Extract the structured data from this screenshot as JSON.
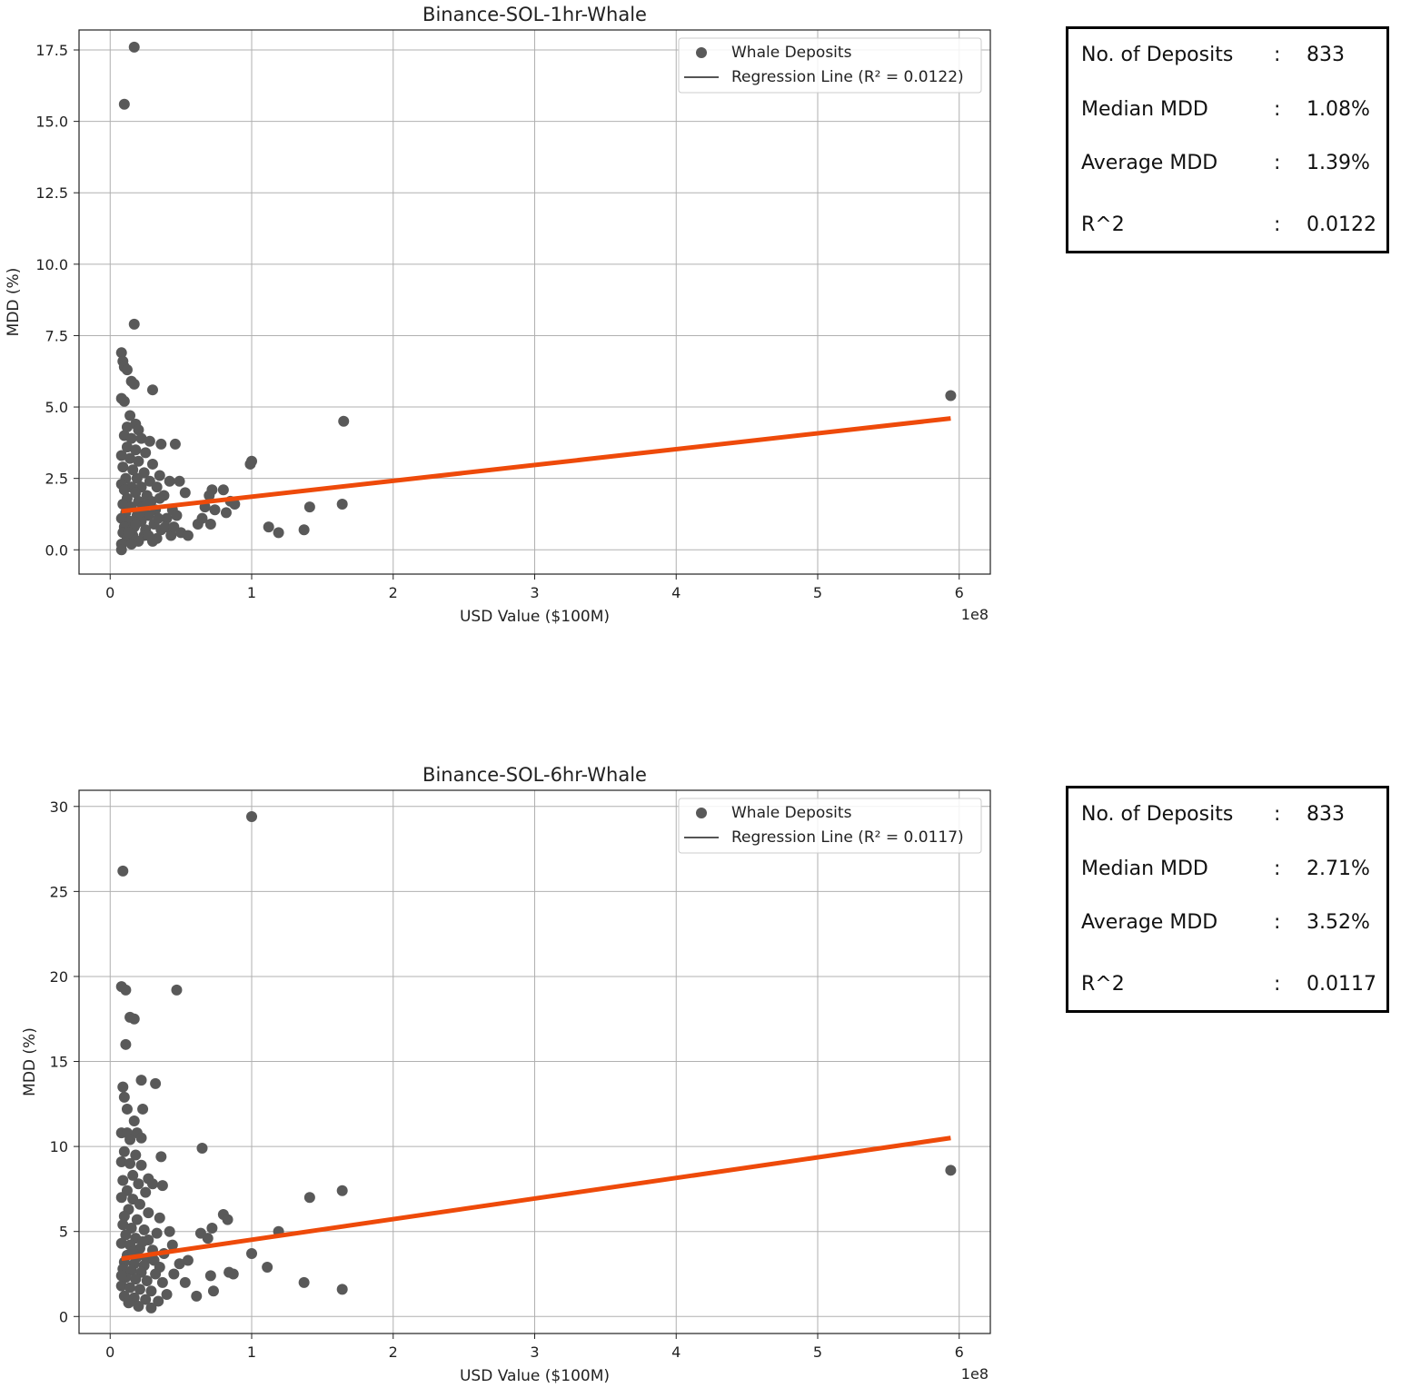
{
  "chart_data": [
    {
      "type": "scatter",
      "title": "Binance-SOL-1hr-Whale",
      "xlabel": "USD Value ($100M)",
      "ylabel": "MDD (%)",
      "x_offset_label": "1e8",
      "xlim": [
        -0.22,
        6.22
      ],
      "ylim": [
        -0.85,
        18.2
      ],
      "xticks": [
        0,
        1,
        2,
        3,
        4,
        5,
        6
      ],
      "xtick_labels": [
        "0",
        "1",
        "2",
        "3",
        "4",
        "5",
        "6"
      ],
      "yticks": [
        0,
        2.5,
        5,
        7.5,
        10,
        12.5,
        15,
        17.5
      ],
      "ytick_labels": [
        "0.0",
        "2.5",
        "5.0",
        "7.5",
        "10.0",
        "12.5",
        "15.0",
        "17.5"
      ],
      "grid": true,
      "legend": {
        "position": "top-right",
        "entries": [
          "Whale Deposits",
          "Regression Line (R² = 0.0122)"
        ]
      },
      "series": [
        {
          "name": "Whale Deposits",
          "kind": "scatter",
          "color": "#595959",
          "points": [
            [
              0.1,
              15.6
            ],
            [
              0.17,
              17.6
            ],
            [
              0.17,
              7.9
            ],
            [
              0.08,
              6.9
            ],
            [
              0.09,
              6.6
            ],
            [
              0.1,
              6.4
            ],
            [
              0.12,
              6.3
            ],
            [
              0.15,
              5.9
            ],
            [
              0.17,
              5.8
            ],
            [
              0.3,
              5.6
            ],
            [
              0.08,
              5.3
            ],
            [
              0.1,
              5.2
            ],
            [
              0.14,
              4.7
            ],
            [
              0.18,
              4.4
            ],
            [
              0.12,
              4.3
            ],
            [
              0.2,
              4.2
            ],
            [
              0.1,
              4.0
            ],
            [
              0.15,
              3.9
            ],
            [
              0.22,
              3.9
            ],
            [
              0.28,
              3.8
            ],
            [
              0.36,
              3.7
            ],
            [
              0.46,
              3.7
            ],
            [
              0.12,
              3.6
            ],
            [
              0.18,
              3.5
            ],
            [
              0.25,
              3.4
            ],
            [
              0.08,
              3.3
            ],
            [
              0.14,
              3.2
            ],
            [
              0.2,
              3.1
            ],
            [
              0.3,
              3.0
            ],
            [
              0.09,
              2.9
            ],
            [
              0.16,
              2.8
            ],
            [
              0.24,
              2.7
            ],
            [
              0.35,
              2.6
            ],
            [
              0.11,
              2.5
            ],
            [
              0.19,
              2.5
            ],
            [
              0.28,
              2.4
            ],
            [
              0.42,
              2.4
            ],
            [
              0.49,
              2.4
            ],
            [
              0.08,
              2.3
            ],
            [
              0.15,
              2.2
            ],
            [
              0.22,
              2.2
            ],
            [
              0.33,
              2.2
            ],
            [
              0.53,
              2.0
            ],
            [
              0.1,
              2.1
            ],
            [
              0.18,
              2.0
            ],
            [
              0.26,
              1.9
            ],
            [
              0.38,
              1.9
            ],
            [
              0.12,
              1.8
            ],
            [
              0.2,
              1.7
            ],
            [
              0.29,
              1.7
            ],
            [
              0.35,
              1.8
            ],
            [
              0.09,
              1.6
            ],
            [
              0.15,
              1.5
            ],
            [
              0.23,
              1.5
            ],
            [
              0.32,
              1.4
            ],
            [
              0.44,
              1.4
            ],
            [
              0.11,
              1.3
            ],
            [
              0.19,
              1.2
            ],
            [
              0.27,
              1.2
            ],
            [
              0.4,
              1.1
            ],
            [
              0.08,
              1.1
            ],
            [
              0.14,
              1.0
            ],
            [
              0.22,
              1.0
            ],
            [
              0.31,
              0.9
            ],
            [
              0.47,
              1.2
            ],
            [
              0.1,
              0.8
            ],
            [
              0.17,
              0.8
            ],
            [
              0.25,
              0.7
            ],
            [
              0.36,
              0.7
            ],
            [
              0.09,
              0.6
            ],
            [
              0.16,
              0.5
            ],
            [
              0.24,
              0.5
            ],
            [
              0.33,
              0.4
            ],
            [
              0.12,
              0.4
            ],
            [
              0.2,
              0.3
            ],
            [
              0.3,
              0.3
            ],
            [
              0.08,
              0.2
            ],
            [
              0.15,
              0.2
            ],
            [
              0.27,
              0.5
            ],
            [
              0.43,
              0.5
            ],
            [
              0.5,
              0.6
            ],
            [
              0.55,
              0.5
            ],
            [
              0.62,
              0.9
            ],
            [
              0.65,
              1.1
            ],
            [
              0.67,
              1.5
            ],
            [
              0.7,
              1.9
            ],
            [
              0.72,
              2.1
            ],
            [
              0.8,
              2.1
            ],
            [
              0.74,
              1.4
            ],
            [
              0.82,
              1.3
            ],
            [
              0.85,
              1.7
            ],
            [
              0.88,
              1.6
            ],
            [
              0.71,
              0.9
            ],
            [
              0.99,
              3.0
            ],
            [
              1.0,
              3.1
            ],
            [
              1.12,
              0.8
            ],
            [
              1.19,
              0.6
            ],
            [
              1.37,
              0.7
            ],
            [
              1.41,
              1.5
            ],
            [
              1.64,
              1.6
            ],
            [
              1.65,
              4.5
            ],
            [
              5.94,
              5.4
            ],
            [
              0.08,
              0.0
            ],
            [
              0.13,
              0.6
            ],
            [
              0.18,
              0.9
            ],
            [
              0.21,
              1.3
            ],
            [
              0.26,
              1.6
            ],
            [
              0.34,
              1.1
            ],
            [
              0.39,
              0.8
            ],
            [
              0.45,
              0.8
            ]
          ]
        },
        {
          "name": "Regression Line (R² = 0.0122)",
          "kind": "line",
          "color": "#ee4a0a",
          "x": [
            0.08,
            5.94
          ],
          "y": [
            1.35,
            4.6
          ]
        }
      ]
    },
    {
      "type": "scatter",
      "title": "Binance-SOL-6hr-Whale",
      "xlabel": "USD Value ($100M)",
      "ylabel": "MDD (%)",
      "x_offset_label": "1e8",
      "xlim": [
        -0.22,
        6.22
      ],
      "ylim": [
        -1.0,
        30.95
      ],
      "xticks": [
        0,
        1,
        2,
        3,
        4,
        5,
        6
      ],
      "xtick_labels": [
        "0",
        "1",
        "2",
        "3",
        "4",
        "5",
        "6"
      ],
      "yticks": [
        0,
        5,
        10,
        15,
        20,
        25,
        30
      ],
      "ytick_labels": [
        "0",
        "5",
        "10",
        "15",
        "20",
        "25",
        "30"
      ],
      "grid": true,
      "legend": {
        "position": "top-right",
        "entries": [
          "Whale Deposits",
          "Regression Line (R² = 0.0117)"
        ]
      },
      "series": [
        {
          "name": "Whale Deposits",
          "kind": "scatter",
          "color": "#595959",
          "points": [
            [
              1.0,
              29.4
            ],
            [
              0.09,
              26.2
            ],
            [
              0.08,
              19.4
            ],
            [
              0.11,
              19.2
            ],
            [
              0.47,
              19.2
            ],
            [
              0.14,
              17.6
            ],
            [
              0.17,
              17.5
            ],
            [
              0.11,
              16.0
            ],
            [
              0.22,
              13.9
            ],
            [
              0.32,
              13.7
            ],
            [
              0.09,
              13.5
            ],
            [
              0.1,
              12.9
            ],
            [
              0.12,
              12.2
            ],
            [
              0.23,
              12.2
            ],
            [
              0.17,
              11.5
            ],
            [
              0.08,
              10.8
            ],
            [
              0.12,
              10.8
            ],
            [
              0.19,
              10.8
            ],
            [
              0.22,
              10.5
            ],
            [
              0.14,
              10.4
            ],
            [
              0.65,
              9.9
            ],
            [
              0.1,
              9.7
            ],
            [
              0.18,
              9.5
            ],
            [
              0.36,
              9.4
            ],
            [
              0.08,
              9.1
            ],
            [
              0.14,
              9.0
            ],
            [
              0.22,
              8.9
            ],
            [
              0.16,
              8.3
            ],
            [
              0.27,
              8.1
            ],
            [
              0.09,
              8.0
            ],
            [
              0.2,
              7.8
            ],
            [
              0.37,
              7.7
            ],
            [
              0.3,
              7.8
            ],
            [
              0.12,
              7.4
            ],
            [
              0.25,
              7.3
            ],
            [
              0.08,
              7.0
            ],
            [
              0.16,
              6.9
            ],
            [
              0.21,
              6.6
            ],
            [
              0.13,
              6.3
            ],
            [
              0.27,
              6.1
            ],
            [
              0.35,
              5.8
            ],
            [
              0.1,
              5.9
            ],
            [
              0.19,
              5.7
            ],
            [
              0.8,
              6.0
            ],
            [
              0.83,
              5.7
            ],
            [
              0.09,
              5.4
            ],
            [
              0.15,
              5.2
            ],
            [
              0.24,
              5.1
            ],
            [
              0.72,
              5.2
            ],
            [
              0.64,
              4.9
            ],
            [
              0.42,
              5.0
            ],
            [
              0.33,
              4.9
            ],
            [
              0.11,
              4.8
            ],
            [
              0.18,
              4.6
            ],
            [
              0.27,
              4.5
            ],
            [
              0.69,
              4.6
            ],
            [
              1.19,
              5.0
            ],
            [
              0.08,
              4.3
            ],
            [
              0.14,
              4.2
            ],
            [
              0.21,
              4.0
            ],
            [
              0.3,
              3.9
            ],
            [
              0.38,
              3.7
            ],
            [
              0.12,
              3.6
            ],
            [
              0.19,
              3.5
            ],
            [
              0.26,
              3.4
            ],
            [
              1.0,
              3.7
            ],
            [
              0.1,
              3.2
            ],
            [
              0.17,
              3.1
            ],
            [
              0.24,
              3.0
            ],
            [
              0.35,
              2.9
            ],
            [
              0.49,
              3.1
            ],
            [
              0.55,
              3.3
            ],
            [
              0.09,
              2.8
            ],
            [
              0.15,
              2.7
            ],
            [
              0.22,
              2.6
            ],
            [
              0.32,
              2.5
            ],
            [
              0.45,
              2.5
            ],
            [
              1.11,
              2.9
            ],
            [
              0.11,
              2.3
            ],
            [
              0.18,
              2.2
            ],
            [
              0.26,
              2.1
            ],
            [
              0.37,
              2.0
            ],
            [
              0.53,
              2.0
            ],
            [
              0.71,
              2.4
            ],
            [
              0.84,
              2.6
            ],
            [
              0.87,
              2.5
            ],
            [
              0.08,
              1.8
            ],
            [
              0.14,
              1.7
            ],
            [
              0.21,
              1.6
            ],
            [
              0.29,
              1.5
            ],
            [
              0.4,
              1.3
            ],
            [
              0.73,
              1.5
            ],
            [
              0.1,
              1.2
            ],
            [
              0.17,
              1.1
            ],
            [
              0.25,
              1.0
            ],
            [
              0.34,
              0.9
            ],
            [
              0.61,
              1.2
            ],
            [
              0.13,
              0.8
            ],
            [
              0.2,
              0.6
            ],
            [
              0.29,
              0.5
            ],
            [
              1.37,
              2.0
            ],
            [
              1.41,
              7.0
            ],
            [
              1.64,
              7.4
            ],
            [
              1.64,
              1.6
            ],
            [
              5.94,
              8.6
            ],
            [
              0.08,
              2.4
            ],
            [
              0.16,
              3.8
            ],
            [
              0.23,
              4.4
            ],
            [
              0.31,
              3.3
            ],
            [
              0.44,
              4.2
            ]
          ]
        },
        {
          "name": "Regression Line (R² = 0.0117)",
          "kind": "line",
          "color": "#ee4a0a",
          "x": [
            0.08,
            5.94
          ],
          "y": [
            3.4,
            10.5
          ]
        }
      ]
    }
  ],
  "stats": [
    {
      "rows": [
        {
          "label": "No. of Deposits",
          "colon": ":",
          "value": "833"
        },
        {
          "label": "Median MDD",
          "colon": ":",
          "value": "1.08%"
        },
        {
          "label": "Average MDD",
          "colon": ":",
          "value": "1.39%"
        },
        {
          "label": "R^2",
          "colon": ":",
          "value": "0.0122"
        }
      ]
    },
    {
      "rows": [
        {
          "label": "No. of Deposits",
          "colon": ":",
          "value": "833"
        },
        {
          "label": "Median MDD",
          "colon": ":",
          "value": "2.71%"
        },
        {
          "label": "Average MDD",
          "colon": ":",
          "value": "3.52%"
        },
        {
          "label": "R^2",
          "colon": ":",
          "value": "0.0117"
        }
      ]
    }
  ]
}
